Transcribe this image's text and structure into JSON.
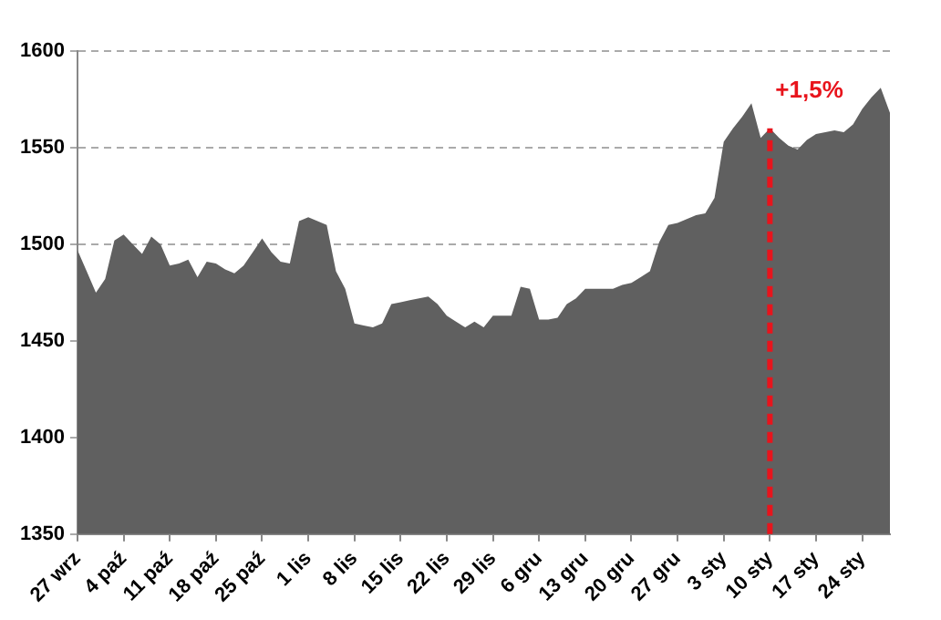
{
  "chart_data": {
    "type": "area",
    "categories": [
      "27 wrz",
      null,
      null,
      null,
      null,
      "4 paź",
      null,
      null,
      null,
      null,
      "11 paź",
      null,
      null,
      null,
      null,
      "18 paź",
      null,
      null,
      null,
      null,
      "25 paź",
      null,
      null,
      null,
      null,
      "1 lis",
      null,
      null,
      null,
      null,
      "8 lis",
      null,
      null,
      null,
      null,
      "15 lis",
      null,
      null,
      null,
      null,
      "22 lis",
      null,
      null,
      null,
      null,
      "29 lis",
      null,
      null,
      null,
      null,
      "6 gru",
      null,
      null,
      null,
      null,
      "13 gru",
      null,
      null,
      null,
      null,
      "20 gru",
      null,
      null,
      null,
      null,
      "27 gru",
      null,
      null,
      null,
      null,
      "3 sty",
      null,
      null,
      null,
      null,
      "10 sty",
      null,
      null,
      null,
      null,
      "17 sty",
      null,
      null,
      null,
      null,
      "24 sty",
      null,
      null,
      null
    ],
    "series": [
      {
        "color": "#606060",
        "values": [
          1497,
          1486,
          1475,
          1482,
          1502,
          1505,
          1500,
          1495,
          1504,
          1500,
          1489,
          1490,
          1492,
          1483,
          1491,
          1490,
          1487,
          1485,
          1489,
          1496,
          1503,
          1496,
          1491,
          1490,
          1512,
          1514,
          1512,
          1510,
          1486,
          1477,
          1459,
          1458,
          1457,
          1459,
          1469,
          1470,
          1471,
          1472,
          1473,
          1469,
          1463,
          1460,
          1457,
          1460,
          1457,
          1463,
          1463,
          1463,
          1478,
          1477,
          1461,
          1461,
          1462,
          1469,
          1472,
          1477,
          1477,
          1477,
          1477,
          1479,
          1480,
          1483,
          1486,
          1501,
          1510,
          1511,
          1513,
          1515,
          1516,
          1524,
          1553,
          1560,
          1566,
          1573,
          1555,
          1560,
          1555,
          1551,
          1549,
          1554,
          1557,
          1558,
          1559,
          1558,
          1562,
          1570,
          1576,
          1581,
          1568
        ]
      }
    ],
    "ylim": [
      1350,
      1600
    ],
    "yticks": [
      1350,
      1400,
      1450,
      1500,
      1550,
      1600
    ],
    "grid": "y",
    "legend": false,
    "marker": "none",
    "annotations": [
      "+1,5%"
    ],
    "ref_lines": [
      {
        "axis": "x",
        "value": "10 sty",
        "color": "#e8141c",
        "line_style": "dashed"
      }
    ]
  }
}
